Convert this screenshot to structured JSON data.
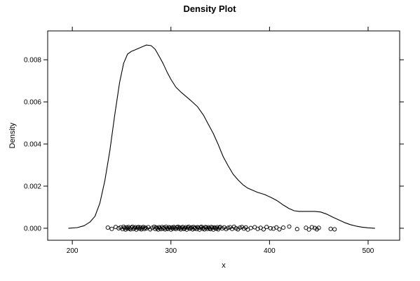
{
  "chart_data": {
    "type": "line",
    "title": "Density Plot",
    "xlabel": "x",
    "ylabel": "Density",
    "xlim": [
      175,
      532
    ],
    "ylim": [
      -0.00057,
      0.00937
    ],
    "x_ticks": [
      200,
      300,
      400,
      500
    ],
    "x_tick_labels": [
      "200",
      "300",
      "400",
      "500"
    ],
    "y_ticks": [
      0.0,
      0.002,
      0.004,
      0.006,
      0.008
    ],
    "y_tick_labels": [
      "0.000",
      "0.002",
      "0.004",
      "0.006",
      "0.008"
    ],
    "grid": false,
    "legend": "none",
    "colors": {
      "line": "#000000",
      "points": "#000000",
      "frame": "#000000"
    },
    "series": [
      {
        "x": [
          196,
          205,
          212,
          218,
          223,
          228,
          233,
          238,
          243,
          248,
          252,
          256,
          260,
          265,
          270,
          275,
          280,
          284,
          288,
          292,
          296,
          300,
          305,
          310,
          315,
          320,
          327,
          333,
          338,
          343,
          348,
          353,
          358,
          363,
          368,
          373,
          378,
          383,
          388,
          395,
          402,
          408,
          414,
          420,
          425,
          430,
          436,
          440,
          446,
          452,
          458,
          464,
          470,
          476,
          482,
          488,
          494,
          500,
          507
        ],
        "y": [
          0.0,
          3e-05,
          0.00012,
          0.0003,
          0.00057,
          0.0012,
          0.00227,
          0.00367,
          0.00537,
          0.00693,
          0.00783,
          0.00827,
          0.0084,
          0.0085,
          0.0086,
          0.0087,
          0.00867,
          0.0085,
          0.00817,
          0.00783,
          0.00743,
          0.00707,
          0.0067,
          0.00647,
          0.00627,
          0.00607,
          0.00577,
          0.00537,
          0.00493,
          0.0045,
          0.00397,
          0.0034,
          0.00297,
          0.00257,
          0.0023,
          0.00207,
          0.0019,
          0.0018,
          0.0017,
          0.0016,
          0.00145,
          0.0013,
          0.0011,
          0.00093,
          0.00083,
          0.0008,
          0.0008,
          0.0008,
          0.0008,
          0.00077,
          0.00067,
          0.00053,
          0.0004,
          0.00027,
          0.00017,
          0.0001,
          5e-05,
          2e-05,
          0.0
        ]
      }
    ],
    "rug_points": {
      "x": [
        236,
        240,
        244,
        247,
        249,
        251,
        252,
        253,
        254,
        255,
        256,
        257,
        258,
        259,
        260,
        261,
        262,
        263,
        264,
        265,
        266,
        267,
        268,
        269,
        270,
        271,
        272,
        273,
        274,
        275,
        277,
        279,
        281,
        283,
        284,
        285,
        286,
        287,
        288,
        289,
        290,
        291,
        292,
        293,
        294,
        295,
        296,
        297,
        298,
        299,
        300,
        301,
        302,
        303,
        304,
        305,
        306,
        307,
        308,
        309,
        310,
        311,
        312,
        313,
        314,
        315,
        316,
        317,
        318,
        319,
        320,
        321,
        322,
        323,
        324,
        325,
        326,
        327,
        328,
        329,
        330,
        331,
        332,
        333,
        334,
        335,
        336,
        337,
        338,
        339,
        340,
        341,
        342,
        343,
        344,
        345,
        346,
        347,
        348,
        349,
        350,
        352,
        354,
        356,
        358,
        360,
        362,
        364,
        366,
        368,
        370,
        372,
        374,
        376,
        378,
        381,
        385,
        388,
        391,
        394,
        397,
        401,
        404,
        407,
        410,
        414,
        420,
        428,
        437,
        440,
        443,
        446,
        448,
        450,
        462,
        466
      ],
      "y": [
        3e-05,
        -3e-05,
        6e-05,
        0.0,
        4e-05,
        -4e-05,
        7e-05,
        1e-05,
        -6e-05,
        4e-05,
        -2e-05,
        6e-05,
        0.0,
        -5e-05,
        3e-05,
        7e-05,
        -3e-05,
        1e-05,
        5e-05,
        -6e-05,
        2e-05,
        6e-05,
        -2e-05,
        4e-05,
        -5e-05,
        1e-05,
        6e-05,
        -3e-05,
        3e-05,
        -1e-05,
        5e-05,
        -5e-05,
        2e-05,
        7e-05,
        -3e-05,
        4e-05,
        0.0,
        -6e-05,
        5e-05,
        1e-05,
        -4e-05,
        6e-05,
        -1e-05,
        3e-05,
        -5e-05,
        7e-05,
        0.0,
        -3e-05,
        5e-05,
        2e-05,
        -6e-05,
        4e-05,
        -2e-05,
        6e-05,
        1e-05,
        -4e-05,
        3e-05,
        7e-05,
        -1e-05,
        4e-05,
        -5e-05,
        2e-05,
        6e-05,
        -3e-05,
        0.0,
        5e-05,
        -6e-05,
        3e-05,
        7e-05,
        -2e-05,
        1e-05,
        4e-05,
        -5e-05,
        6e-05,
        -1e-05,
        3e-05,
        -4e-05,
        5e-05,
        2e-05,
        -6e-05,
        4e-05,
        7e-05,
        -2e-05,
        1e-05,
        -5e-05,
        6e-05,
        3e-05,
        -3e-05,
        5e-05,
        0.0,
        -4e-05,
        6e-05,
        2e-05,
        -6e-05,
        4e-05,
        1e-05,
        -2e-05,
        5e-05,
        -5e-05,
        3e-05,
        6e-05,
        -1e-05,
        4e-05,
        -4e-05,
        2e-05,
        5e-05,
        -3e-05,
        7e-05,
        0.0,
        -5e-05,
        3e-05,
        6e-05,
        -2e-05,
        4e-05,
        -6e-05,
        1e-05,
        5e-05,
        -3e-05,
        2e-05,
        -5e-05,
        6e-05,
        0.0,
        -2e-05,
        4e-05,
        -5e-05,
        3e-05,
        8e-05,
        -4e-05,
        2e-05,
        -6e-05,
        5e-05,
        1e-05,
        -5e-05,
        2e-05,
        -3e-05,
        -5e-05
      ]
    }
  }
}
